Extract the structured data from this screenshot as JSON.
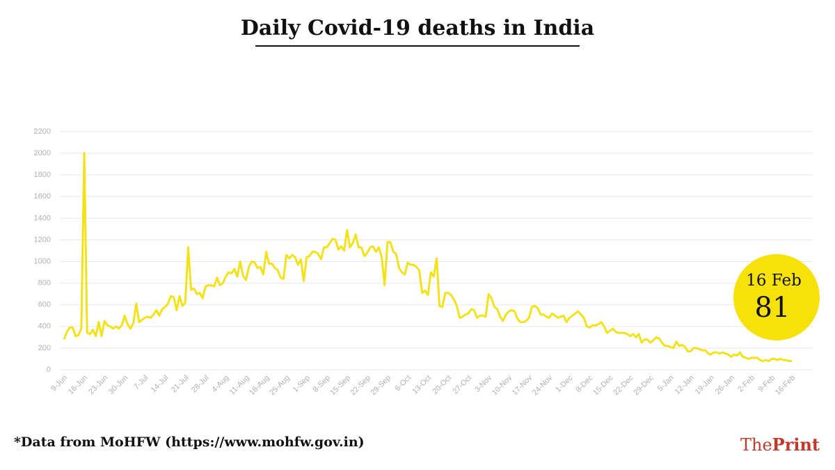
{
  "chart_data": {
    "type": "line",
    "title": "Daily Covid-19 deaths in India",
    "categories": [
      "9-Jun",
      null,
      null,
      null,
      null,
      null,
      null,
      "16-Jun",
      null,
      null,
      null,
      null,
      null,
      null,
      "23-Jun",
      null,
      null,
      null,
      null,
      null,
      null,
      "30-Jun",
      null,
      null,
      null,
      null,
      null,
      null,
      "7-Jul",
      null,
      null,
      null,
      null,
      null,
      null,
      "14-Jul",
      null,
      null,
      null,
      null,
      null,
      null,
      "21-Jul",
      null,
      null,
      null,
      null,
      null,
      null,
      "28-Jul",
      null,
      null,
      null,
      null,
      null,
      null,
      "4-Aug",
      null,
      null,
      null,
      null,
      null,
      null,
      "11-Aug",
      null,
      null,
      null,
      null,
      null,
      null,
      "18-Aug",
      null,
      null,
      null,
      null,
      null,
      null,
      "25-Aug",
      null,
      null,
      null,
      null,
      null,
      null,
      "1-Sep",
      null,
      null,
      null,
      null,
      null,
      null,
      "8-Sep",
      null,
      null,
      null,
      null,
      null,
      null,
      "15-Sep",
      null,
      null,
      null,
      null,
      null,
      null,
      "22-Sep",
      null,
      null,
      null,
      null,
      null,
      null,
      "29-Sep",
      null,
      null,
      null,
      null,
      null,
      null,
      "6-Oct",
      null,
      null,
      null,
      null,
      null,
      null,
      "13-Oct",
      null,
      null,
      null,
      null,
      null,
      null,
      "20-Oct",
      null,
      null,
      null,
      null,
      null,
      null,
      "27-Oct",
      null,
      null,
      null,
      null,
      null,
      null,
      "3-Nov",
      null,
      null,
      null,
      null,
      null,
      null,
      "10-Nov",
      null,
      null,
      null,
      null,
      null,
      null,
      "17-Nov",
      null,
      null,
      null,
      null,
      null,
      null,
      "24-Nov",
      null,
      null,
      null,
      null,
      null,
      null,
      "1-Dec",
      null,
      null,
      null,
      null,
      null,
      null,
      "8-Dec",
      null,
      null,
      null,
      null,
      null,
      null,
      "15-Dec",
      null,
      null,
      null,
      null,
      null,
      null,
      "22-Dec",
      null,
      null,
      null,
      null,
      null,
      null,
      "29-Dec",
      null,
      null,
      null,
      null,
      null,
      null,
      "5-Jan",
      null,
      null,
      null,
      null,
      null,
      null,
      "12-Jan",
      null,
      null,
      null,
      null,
      null,
      null,
      "19-Jan",
      null,
      null,
      null,
      null,
      null,
      null,
      "26-Jan",
      null,
      null,
      null,
      null,
      null,
      null,
      "2-Feb",
      null,
      null,
      null,
      null,
      null,
      null,
      "9-Feb",
      null,
      null,
      null,
      null,
      null,
      null,
      "16-Feb"
    ],
    "series": [
      {
        "color": "#f3e21a",
        "values": [
          280,
          350,
          390,
          390,
          310,
          320,
          380,
          2003,
          340,
          330,
          370,
          310,
          440,
          310,
          450,
          410,
          400,
          380,
          400,
          380,
          410,
          500,
          420,
          380,
          430,
          610,
          440,
          460,
          480,
          490,
          480,
          510,
          550,
          500,
          560,
          580,
          610,
          680,
          670,
          550,
          680,
          590,
          620,
          1130,
          740,
          750,
          700,
          710,
          660,
          770,
          780,
          780,
          770,
          850,
          780,
          800,
          860,
          900,
          890,
          930,
          860,
          1000,
          870,
          830,
          950,
          1000,
          990,
          940,
          950,
          880,
          1090,
          980,
          980,
          940,
          920,
          850,
          840,
          1060,
          1030,
          1060,
          1040,
          970,
          1020,
          820,
          1040,
          1050,
          1090,
          1090,
          1070,
          1020,
          1130,
          1130,
          1170,
          1210,
          1200,
          1110,
          1140,
          1100,
          1290,
          1130,
          1170,
          1250,
          1130,
          1130,
          1050,
          1080,
          1130,
          1140,
          1090,
          1130,
          1040,
          780,
          1180,
          1180,
          1090,
          1070,
          940,
          900,
          880,
          990,
          970,
          970,
          950,
          920,
          710,
          730,
          690,
          900,
          860,
          1030,
          590,
          580,
          710,
          710,
          690,
          650,
          590,
          480,
          490,
          510,
          520,
          560,
          550,
          480,
          500,
          500,
          490,
          700,
          660,
          580,
          560,
          490,
          450,
          510,
          540,
          550,
          540,
          470,
          440,
          440,
          450,
          480,
          580,
          590,
          570,
          510,
          510,
          490,
          480,
          520,
          500,
          480,
          490,
          500,
          440,
          480,
          500,
          520,
          540,
          510,
          480,
          400,
          390,
          410,
          410,
          420,
          440,
          400,
          340,
          360,
          380,
          350,
          340,
          340,
          340,
          330,
          310,
          330,
          300,
          330,
          250,
          280,
          280,
          250,
          270,
          300,
          290,
          250,
          220,
          220,
          210,
          200,
          260,
          220,
          230,
          210,
          170,
          170,
          200,
          200,
          190,
          180,
          180,
          150,
          140,
          160,
          160,
          150,
          160,
          150,
          140,
          120,
          140,
          130,
          160,
          120,
          110,
          100,
          110,
          110,
          110,
          90,
          80,
          90,
          80,
          100,
          100,
          90,
          100,
          90,
          90,
          80,
          81
        ]
      }
    ],
    "ylim": [
      0,
      2200
    ],
    "yticks": [
      0,
      200,
      400,
      600,
      800,
      1000,
      1200,
      1400,
      1600,
      1800,
      2000,
      2200
    ],
    "grid": true,
    "callout": {
      "date": "16 Feb",
      "color": "#f7e10b"
    }
  },
  "footer": {
    "source": "*Data from MoHFW (https://www.mohfw.gov.in)",
    "logo_prefix": "The",
    "logo_name": "Print"
  }
}
